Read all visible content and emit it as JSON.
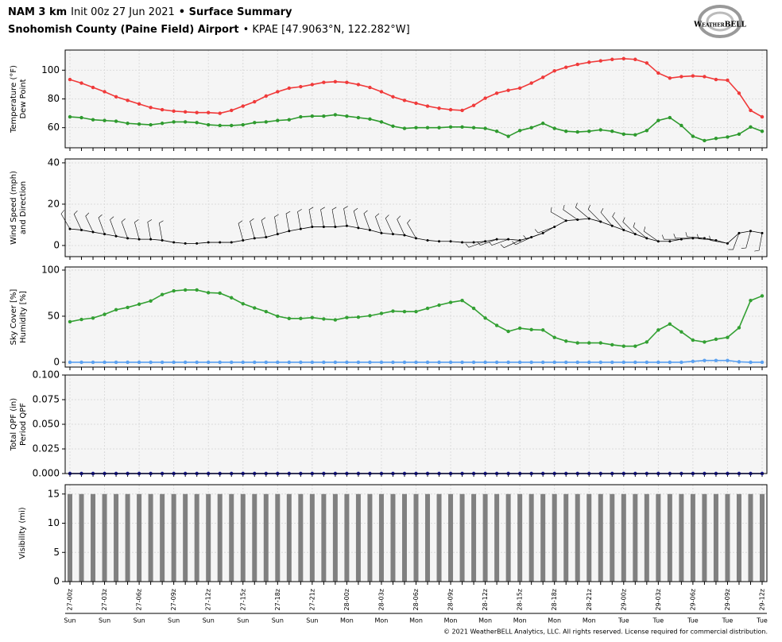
{
  "header": {
    "model": "NAM 3 km",
    "init": "Init 00z 27 Jun 2021",
    "product": "• Surface Summary",
    "location": "Snohomish County (Paine Field) Airport",
    "station": "• KPAE [47.9063°N, 122.282°W]",
    "logo": "WeatherBELL"
  },
  "footer": "© 2021 WeatherBELL Analytics, LLC. All rights reserved. License required for commercial distribution.",
  "chart_data": [
    {
      "type": "line",
      "ylabel": [
        "Temperature (°F)",
        "Dew Point"
      ],
      "ylabel_colors": [
        "#e8322e",
        "#2e9a2e"
      ],
      "ylim": [
        46,
        114
      ],
      "yticks": [
        60,
        80,
        100
      ],
      "grid": true,
      "series": [
        {
          "name": "Temperature (°F)",
          "color": "#f03a3a",
          "values": [
            93.5,
            91,
            88,
            85,
            81.5,
            79,
            76.5,
            74,
            72.5,
            71.5,
            71,
            70.5,
            70.5,
            70,
            72,
            75,
            78,
            82,
            85,
            87.5,
            88.5,
            90,
            91.5,
            92,
            91.5,
            90,
            88,
            85,
            81.5,
            79,
            77,
            75,
            73.5,
            72.5,
            72,
            75.5,
            80.5,
            84,
            86,
            87.5,
            91,
            95,
            99.5,
            102,
            104,
            105.5,
            106.5,
            107.5,
            108,
            107.5,
            105,
            98,
            94.5,
            95.5,
            96,
            95.5,
            93.5,
            93,
            84,
            72,
            67.5
          ]
        },
        {
          "name": "Dew Point",
          "color": "#2e9a2e",
          "values": [
            67.5,
            67,
            65.5,
            65,
            64.5,
            63,
            62.5,
            62,
            63,
            64,
            64,
            63.5,
            62,
            61.5,
            61.5,
            62,
            63.5,
            64,
            65,
            65.5,
            67.5,
            68,
            68,
            69,
            68,
            67,
            66,
            64,
            61,
            59.5,
            60,
            60,
            60,
            60.5,
            60.5,
            60,
            59.5,
            57.5,
            54,
            58,
            60,
            63,
            59.5,
            57.5,
            57,
            57.5,
            58.5,
            57.5,
            55.5,
            55,
            58,
            65,
            67,
            61.5,
            54,
            51,
            52.5,
            53.5,
            55.5,
            60.5,
            57.5
          ]
        }
      ]
    },
    {
      "type": "wind",
      "ylabel": [
        "Wind Speed (mph)",
        "and Direction"
      ],
      "ylabel_colors": [
        "#000000",
        "#000000"
      ],
      "ylim": [
        -5.4,
        41.9
      ],
      "yticks": [
        0,
        20,
        40
      ],
      "grid": true,
      "series": [
        {
          "name": "Wind Speed (mph)",
          "color": "#000000",
          "values": [
            8,
            7.5,
            6.5,
            5.5,
            4.5,
            3.5,
            3,
            3,
            2.5,
            1.5,
            1,
            1,
            1.5,
            1.5,
            1.5,
            2.5,
            3.5,
            4,
            5.5,
            7,
            8,
            9,
            9,
            9,
            9.5,
            8.5,
            7.5,
            6,
            5.5,
            5,
            3.5,
            2.5,
            2,
            2,
            1.5,
            1.5,
            2,
            3,
            3,
            2.5,
            4,
            6,
            9,
            12,
            12.5,
            13,
            11.5,
            9.5,
            7.5,
            5.5,
            3.5,
            2,
            2,
            3,
            3.5,
            3.5,
            2.5,
            1,
            6,
            7,
            6
          ],
          "directions": [
            330,
            335,
            335,
            340,
            340,
            340,
            345,
            350,
            350,
            null,
            null,
            null,
            null,
            null,
            null,
            345,
            345,
            345,
            350,
            350,
            350,
            350,
            350,
            350,
            350,
            345,
            340,
            340,
            335,
            335,
            330,
            null,
            null,
            null,
            null,
            null,
            250,
            250,
            250,
            245,
            245,
            250,
            250,
            300,
            305,
            310,
            315,
            320,
            320,
            315,
            310,
            305,
            null,
            270,
            270,
            275,
            275,
            280,
            200,
            195,
            190
          ]
        }
      ]
    },
    {
      "type": "line",
      "ylabel": [
        "Sky Cover [%]",
        "Humidity [%]"
      ],
      "ylabel_colors": [
        "#4a90e2",
        "#2e9a2e"
      ],
      "ylim": [
        -5.2,
        103.4
      ],
      "yticks": [
        0,
        50,
        100
      ],
      "grid": true,
      "series": [
        {
          "name": "Sky Cover [%]",
          "color": "#5aa0f0",
          "values": [
            0,
            0,
            0,
            0,
            0,
            0,
            0,
            0,
            0,
            0,
            0,
            0,
            0,
            0,
            0,
            0,
            0,
            0,
            0,
            0,
            0,
            0,
            0,
            0,
            0,
            0,
            0,
            0,
            0,
            0,
            0,
            0,
            0,
            0,
            0,
            0,
            0,
            0,
            0,
            0,
            0,
            0,
            0,
            0,
            0,
            0,
            0,
            0,
            0,
            0,
            0,
            0,
            0,
            0,
            1,
            2,
            2,
            2,
            0.5,
            0,
            0
          ]
        },
        {
          "name": "Humidity [%]",
          "color": "#33a033",
          "values": [
            44,
            46.5,
            48,
            52,
            57,
            59.5,
            63,
            66.5,
            73.5,
            77.5,
            78.5,
            78.5,
            75.5,
            75,
            70,
            63.5,
            59,
            55,
            50,
            47.5,
            47.5,
            48.5,
            47,
            46,
            48.5,
            49,
            50.5,
            53,
            55.5,
            55,
            55,
            58.5,
            62,
            65,
            67,
            58.5,
            48,
            40,
            33.5,
            37,
            35.5,
            35,
            27,
            23,
            21,
            21,
            21,
            19,
            17.5,
            17.5,
            22,
            35,
            41.5,
            33,
            24,
            22,
            25,
            27,
            37.5,
            67,
            72
          ]
        }
      ]
    },
    {
      "type": "line",
      "ylabel": [
        "Total QPF (in)",
        "Period QPF"
      ],
      "ylabel_colors": [
        "#1a1aa0",
        "#888888"
      ],
      "ylim": [
        0,
        0.1
      ],
      "yticks": [
        {
          "value": 0,
          "label": "0.000"
        },
        {
          "value": 0.025,
          "label": "0.025"
        },
        {
          "value": 0.05,
          "label": "0.050"
        },
        {
          "value": 0.075,
          "label": "0.075"
        },
        {
          "value": 0.1,
          "label": "0.100"
        }
      ],
      "grid": true,
      "series": [
        {
          "name": "Period QPF",
          "color": "#888888",
          "values": [
            0,
            0,
            0,
            0,
            0,
            0,
            0,
            0,
            0,
            0,
            0,
            0,
            0,
            0,
            0,
            0,
            0,
            0,
            0,
            0,
            0,
            0,
            0,
            0,
            0,
            0,
            0,
            0,
            0,
            0,
            0,
            0,
            0,
            0,
            0,
            0,
            0,
            0,
            0,
            0,
            0,
            0,
            0,
            0,
            0,
            0,
            0,
            0,
            0,
            0,
            0,
            0,
            0,
            0,
            0,
            0,
            0,
            0,
            0,
            0,
            0
          ]
        },
        {
          "name": "Total QPF (in)",
          "color": "#1a1aa0",
          "values": [
            0,
            0,
            0,
            0,
            0,
            0,
            0,
            0,
            0,
            0,
            0,
            0,
            0,
            0,
            0,
            0,
            0,
            0,
            0,
            0,
            0,
            0,
            0,
            0,
            0,
            0,
            0,
            0,
            0,
            0,
            0,
            0,
            0,
            0,
            0,
            0,
            0,
            0,
            0,
            0,
            0,
            0,
            0,
            0,
            0,
            0,
            0,
            0,
            0,
            0,
            0,
            0,
            0,
            0,
            0,
            0,
            0,
            0,
            0,
            0,
            0
          ]
        }
      ]
    },
    {
      "type": "bar",
      "ylabel": [
        "Visibility (mi)"
      ],
      "ylabel_colors": [
        "#000000"
      ],
      "ylim": [
        0,
        16.6
      ],
      "yticks": [
        0,
        5,
        10,
        15
      ],
      "grid": true,
      "color": "#808080",
      "values": [
        15,
        15,
        15,
        15,
        15,
        15,
        15,
        15,
        15,
        15,
        15,
        15,
        15,
        15,
        15,
        15,
        15,
        15,
        15,
        15,
        15,
        15,
        15,
        15,
        15,
        15,
        15,
        15,
        15,
        15,
        15,
        15,
        15,
        15,
        15,
        15,
        15,
        15,
        15,
        15,
        15,
        15,
        15,
        15,
        15,
        15,
        15,
        15,
        15,
        15,
        15,
        15,
        15,
        15,
        15,
        15,
        15,
        15,
        15,
        15,
        15
      ],
      "categories": [
        "27-00z",
        null,
        null,
        "27-03z",
        null,
        null,
        "27-06z",
        null,
        null,
        "27-09z",
        null,
        null,
        "27-12z",
        null,
        null,
        "27-15z",
        null,
        null,
        "27-18z",
        null,
        null,
        "27-21z",
        null,
        null,
        "28-00z",
        null,
        null,
        "28-03z",
        null,
        null,
        "28-06z",
        null,
        null,
        "28-09z",
        null,
        null,
        "28-12z",
        null,
        null,
        "28-15z",
        null,
        null,
        "28-18z",
        null,
        null,
        "28-21z",
        null,
        null,
        "29-00z",
        null,
        null,
        "29-03z",
        null,
        null,
        "29-06z",
        null,
        null,
        "29-09z",
        null,
        null,
        "29-12z"
      ],
      "days": [
        "Sun",
        null,
        null,
        "Sun",
        null,
        null,
        "Sun",
        null,
        null,
        "Sun",
        null,
        null,
        "Sun",
        null,
        null,
        "Sun",
        null,
        null,
        "Sun",
        null,
        null,
        "Sun",
        null,
        null,
        "Mon",
        null,
        null,
        "Mon",
        null,
        null,
        "Mon",
        null,
        null,
        "Mon",
        null,
        null,
        "Mon",
        null,
        null,
        "Mon",
        null,
        null,
        "Mon",
        null,
        null,
        "Mon",
        null,
        null,
        "Tue",
        null,
        null,
        "Tue",
        null,
        null,
        "Tue",
        null,
        null,
        "Tue",
        null,
        null,
        "Tue"
      ]
    }
  ]
}
